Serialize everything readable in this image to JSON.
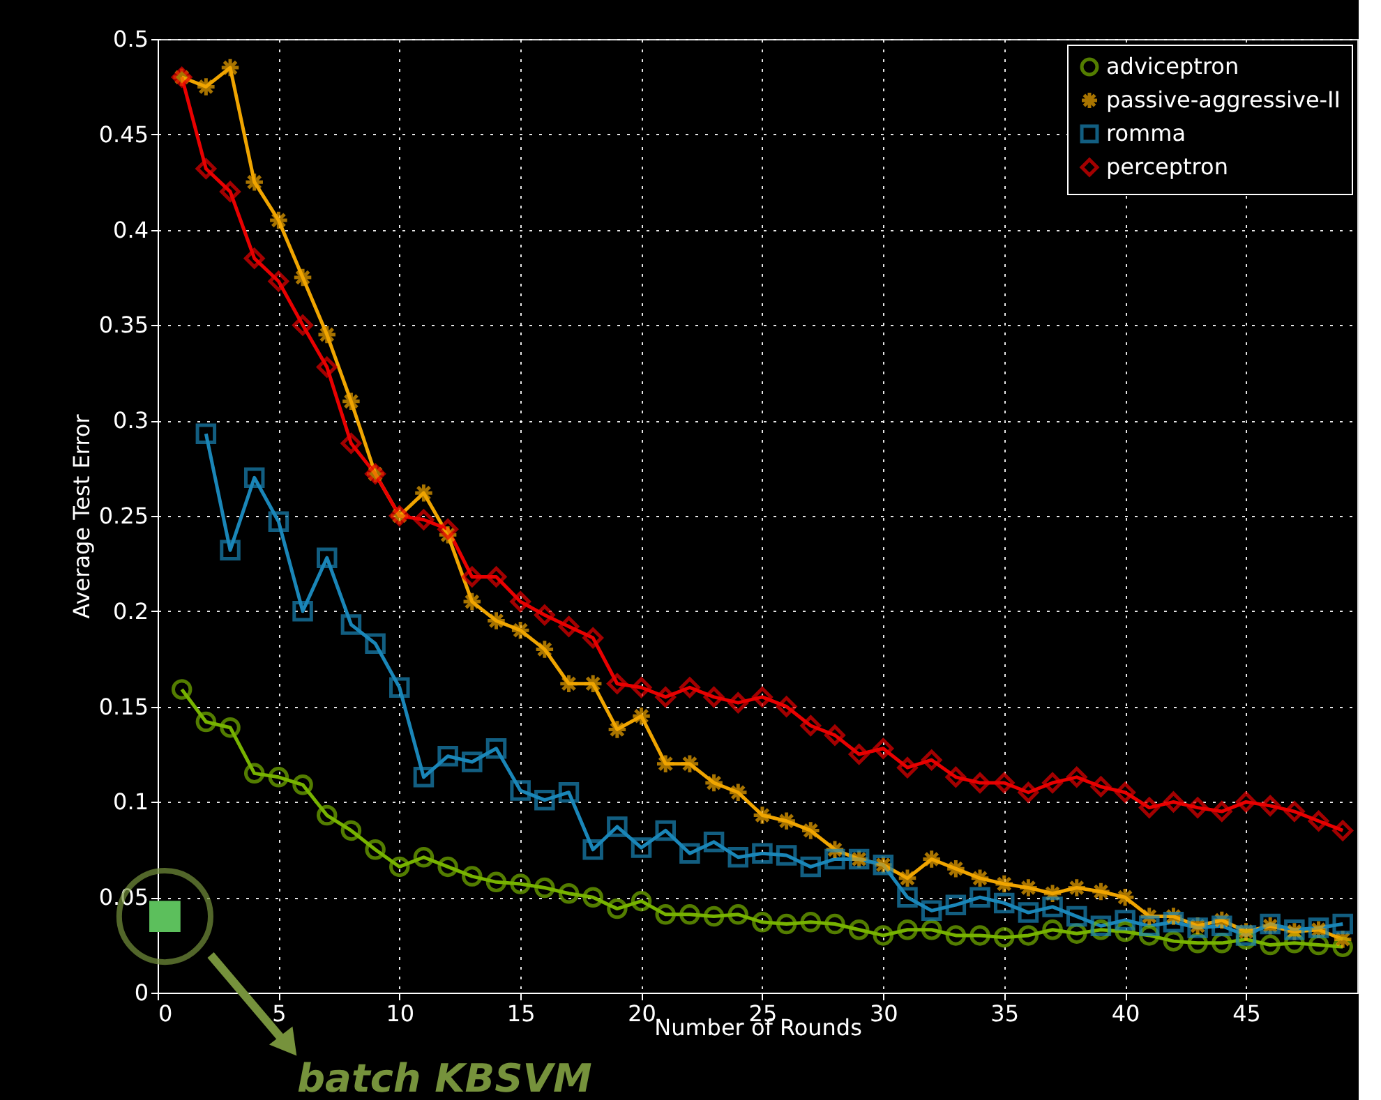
{
  "chart_data": {
    "type": "line",
    "xlabel": "Number of Rounds",
    "ylabel": "Average Test Error",
    "xlim": [
      0,
      49.6
    ],
    "xticks": [
      0,
      5,
      10,
      15,
      20,
      25,
      30,
      35,
      40,
      45
    ],
    "ylim": [
      0,
      0.5
    ],
    "yticks": [
      0,
      0.05,
      0.1,
      0.15,
      0.2,
      0.25,
      0.3,
      0.35,
      0.4,
      0.45,
      0.5
    ],
    "grid": true,
    "legend": "top right",
    "line_style": "solid",
    "x": [
      1,
      2,
      3,
      4,
      5,
      6,
      7,
      8,
      9,
      10,
      11,
      12,
      13,
      14,
      15,
      16,
      17,
      18,
      19,
      20,
      21,
      22,
      23,
      24,
      25,
      26,
      27,
      28,
      29,
      30,
      31,
      32,
      33,
      34,
      35,
      36,
      37,
      38,
      39,
      40,
      41,
      42,
      43,
      44,
      45,
      46,
      47,
      48,
      49
    ],
    "series": [
      {
        "name": "adviceptron",
        "color": "#77b300",
        "marker": "circle",
        "values": [
          0.159,
          0.142,
          0.139,
          0.115,
          0.113,
          0.109,
          0.093,
          0.085,
          0.075,
          0.066,
          0.071,
          0.066,
          0.061,
          0.058,
          0.057,
          0.055,
          0.052,
          0.05,
          0.044,
          0.048,
          0.041,
          0.041,
          0.04,
          0.041,
          0.037,
          0.036,
          0.037,
          0.036,
          0.033,
          0.03,
          0.033,
          0.033,
          0.03,
          0.03,
          0.029,
          0.03,
          0.033,
          0.031,
          0.033,
          0.032,
          0.03,
          0.027,
          0.026,
          0.026,
          0.028,
          0.025,
          0.026,
          0.025,
          0.024
        ]
      },
      {
        "name": "passive-aggressive-II",
        "color": "#f0a500",
        "marker": "cross",
        "values": [
          0.48,
          0.475,
          0.485,
          0.425,
          0.405,
          0.375,
          0.345,
          0.31,
          0.272,
          0.25,
          0.262,
          0.24,
          0.205,
          0.195,
          0.19,
          0.18,
          0.162,
          0.162,
          0.138,
          0.145,
          0.12,
          0.12,
          0.11,
          0.105,
          0.093,
          0.09,
          0.085,
          0.075,
          0.07,
          0.067,
          0.06,
          0.07,
          0.065,
          0.06,
          0.057,
          0.055,
          0.052,
          0.055,
          0.053,
          0.05,
          0.04,
          0.04,
          0.035,
          0.038,
          0.032,
          0.035,
          0.032,
          0.033,
          0.028
        ]
      },
      {
        "name": "romma",
        "color": "#1a86b8",
        "marker": "square",
        "values": [
          null,
          0.293,
          0.232,
          0.27,
          0.247,
          0.2,
          0.228,
          0.193,
          0.183,
          0.16,
          0.113,
          0.124,
          0.121,
          0.128,
          0.106,
          0.101,
          0.105,
          0.075,
          0.087,
          0.076,
          0.085,
          0.073,
          0.079,
          0.071,
          0.073,
          0.072,
          0.066,
          0.07,
          0.07,
          0.067,
          0.05,
          0.043,
          0.046,
          0.05,
          0.047,
          0.042,
          0.045,
          0.04,
          0.035,
          0.038,
          0.035,
          0.037,
          0.034,
          0.035,
          0.03,
          0.036,
          0.033,
          0.034,
          0.036
        ]
      },
      {
        "name": "perceptron",
        "color": "#e80000",
        "marker": "diamond",
        "values": [
          0.48,
          0.432,
          0.42,
          0.385,
          0.373,
          0.35,
          0.328,
          0.288,
          0.272,
          0.25,
          0.248,
          0.243,
          0.218,
          0.218,
          0.205,
          0.198,
          0.192,
          0.186,
          0.162,
          0.16,
          0.155,
          0.16,
          0.155,
          0.152,
          0.155,
          0.15,
          0.14,
          0.135,
          0.125,
          0.128,
          0.118,
          0.122,
          0.113,
          0.11,
          0.11,
          0.105,
          0.11,
          0.113,
          0.108,
          0.105,
          0.097,
          0.1,
          0.097,
          0.095,
          0.1,
          0.098,
          0.095,
          0.09,
          0.085
        ]
      },
      {
        "type": "scatter",
        "color": "#5cbf5c",
        "marker": "square",
        "x": [
          0.3
        ],
        "values": [
          0.04
        ]
      }
    ],
    "annotations": [
      "batch KBSVM"
    ]
  }
}
